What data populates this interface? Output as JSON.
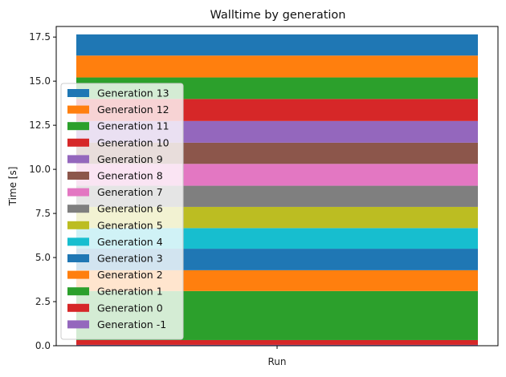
{
  "chart_data": {
    "type": "bar",
    "stacked": true,
    "title": "Walltime by generation",
    "xlabel": "",
    "ylabel": "Time [s]",
    "categories": [
      "Run"
    ],
    "ylim": [
      0,
      18.1
    ],
    "yticks": [
      "0.0",
      "2.5",
      "5.0",
      "7.5",
      "10.0",
      "12.5",
      "15.0",
      "17.5"
    ],
    "grid": false,
    "legend_position": "left",
    "series": [
      {
        "name": "Generation -1",
        "values": [
          0.05
        ],
        "color": "#9467bd"
      },
      {
        "name": "Generation 0",
        "values": [
          0.27
        ],
        "color": "#d62728"
      },
      {
        "name": "Generation 1",
        "values": [
          2.78
        ],
        "color": "#2ca02c"
      },
      {
        "name": "Generation 2",
        "values": [
          1.18
        ],
        "color": "#ff7f0e"
      },
      {
        "name": "Generation 3",
        "values": [
          1.22
        ],
        "color": "#1f77b4"
      },
      {
        "name": "Generation 4",
        "values": [
          1.17
        ],
        "color": "#17becf"
      },
      {
        "name": "Generation 5",
        "values": [
          1.2
        ],
        "color": "#bcbd22"
      },
      {
        "name": "Generation 6",
        "values": [
          1.2
        ],
        "color": "#7f7f7f"
      },
      {
        "name": "Generation 7",
        "values": [
          1.24
        ],
        "color": "#e377c2"
      },
      {
        "name": "Generation 8",
        "values": [
          1.2
        ],
        "color": "#8c564b"
      },
      {
        "name": "Generation 9",
        "values": [
          1.23
        ],
        "color": "#9467bd"
      },
      {
        "name": "Generation 10",
        "values": [
          1.25
        ],
        "color": "#d62728"
      },
      {
        "name": "Generation 11",
        "values": [
          1.22
        ],
        "color": "#2ca02c"
      },
      {
        "name": "Generation 12",
        "values": [
          1.24
        ],
        "color": "#ff7f0e"
      },
      {
        "name": "Generation 13",
        "values": [
          1.2
        ],
        "color": "#1f77b4"
      }
    ]
  }
}
